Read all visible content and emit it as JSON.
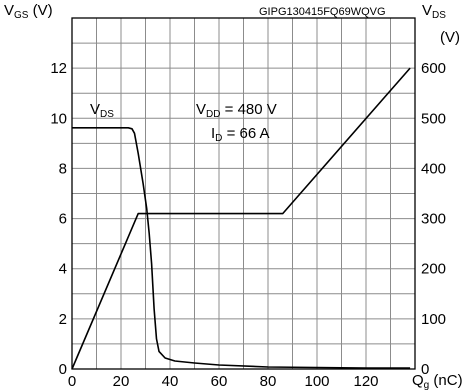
{
  "chart_data": {
    "type": "line",
    "code": "GIPG130415FQ69WQVG",
    "y_left_label": {
      "main": "V",
      "sub": "GS",
      "unit": " (V)"
    },
    "y_right_label": {
      "main": "V",
      "sub": "DS",
      "unit": "(V)"
    },
    "x_label": {
      "main": "Q",
      "sub": "g",
      "unit": " (nC)"
    },
    "series_label": {
      "main": "V",
      "sub": "DS"
    },
    "annotation": {
      "line1": {
        "main": "V",
        "sub": "DD",
        "rest": " = 480 V"
      },
      "line2": {
        "main": "I",
        "sub": "D",
        "rest": " = 66 A"
      }
    },
    "xlim": [
      0,
      140
    ],
    "ylim_left": [
      0,
      14
    ],
    "ylim_right": [
      0,
      700
    ],
    "x_ticks": [
      "0",
      "20",
      "40",
      "60",
      "80",
      "100",
      "120"
    ],
    "y_left_ticks": [
      "0",
      "2",
      "4",
      "6",
      "8",
      "10",
      "12"
    ],
    "y_right_ticks": [
      "0",
      "100",
      "200",
      "300",
      "400",
      "500",
      "600"
    ],
    "x_tick_values": [
      0,
      20,
      40,
      60,
      80,
      100,
      120
    ],
    "y_left_tick_values": [
      0,
      2,
      4,
      6,
      8,
      10,
      12
    ],
    "y_right_tick_values": [
      0,
      100,
      200,
      300,
      400,
      500,
      600
    ],
    "grid": true,
    "series": [
      {
        "axis": "left",
        "points": [
          [
            0,
            0
          ],
          [
            27,
            6.2
          ],
          [
            86,
            6.2
          ],
          [
            138,
            12
          ]
        ]
      },
      {
        "axis": "right",
        "points": [
          [
            0,
            481
          ],
          [
            23,
            481
          ],
          [
            24.5,
            479
          ],
          [
            25.5,
            470
          ],
          [
            27,
            430
          ],
          [
            29,
            370
          ],
          [
            30.5,
            320
          ],
          [
            31.5,
            270
          ],
          [
            32.5,
            210
          ],
          [
            33.5,
            120
          ],
          [
            34.5,
            60
          ],
          [
            35.5,
            35
          ],
          [
            38,
            22
          ],
          [
            42,
            16
          ],
          [
            50,
            12
          ],
          [
            60,
            8
          ],
          [
            80,
            4
          ],
          [
            100,
            3
          ],
          [
            120,
            2
          ],
          [
            138,
            2
          ]
        ]
      }
    ]
  }
}
